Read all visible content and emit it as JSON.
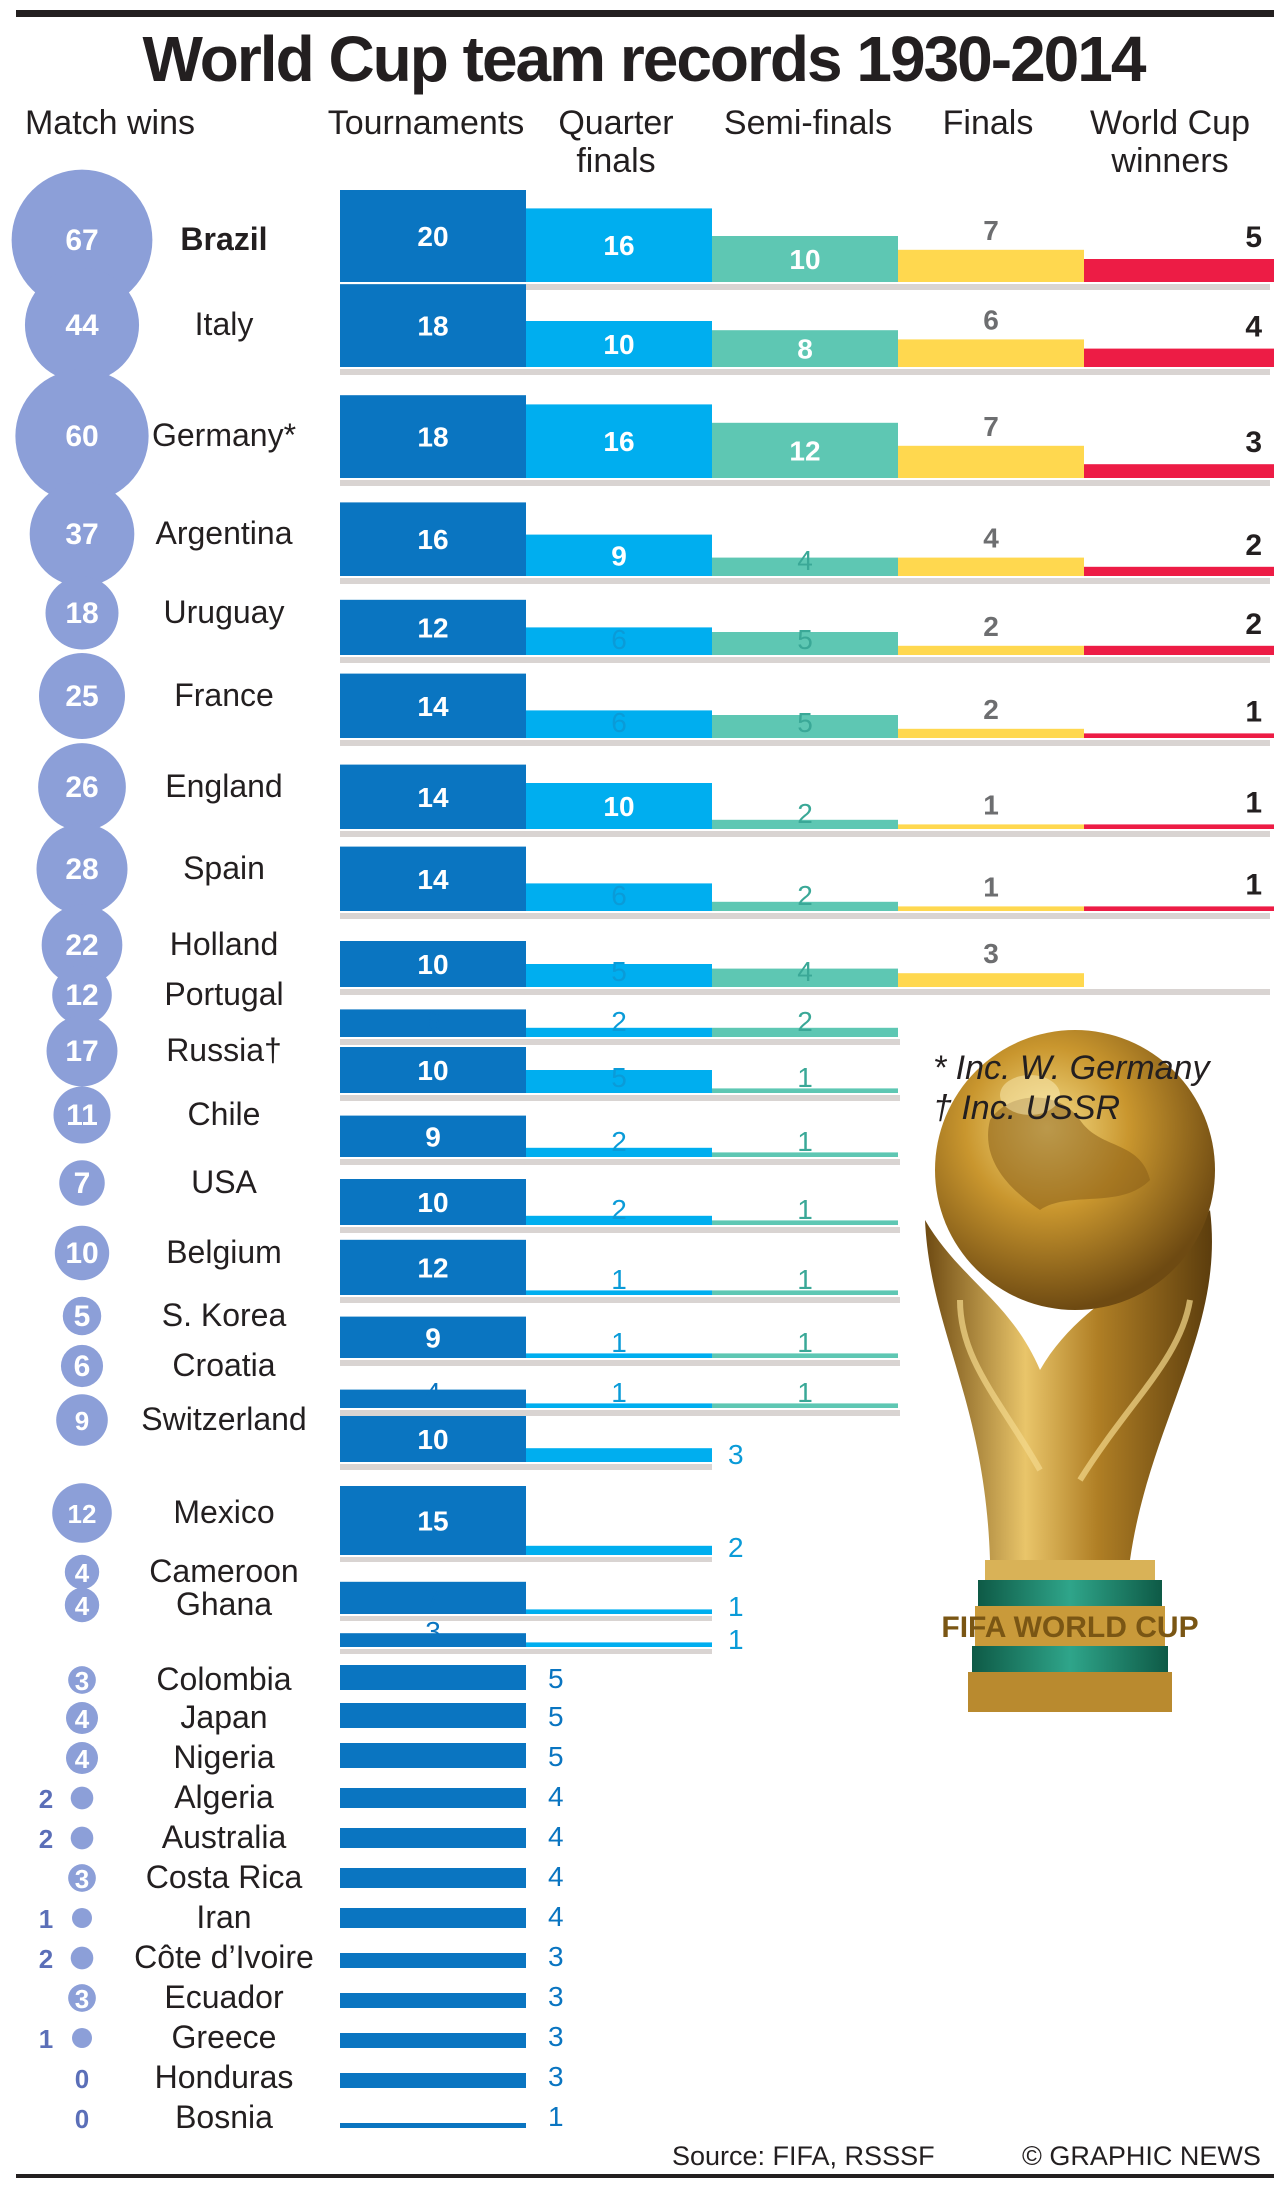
{
  "title": "World Cup team records 1930-2014",
  "headers": {
    "match_wins": "Match wins",
    "tournaments": "Tournaments",
    "quarter_finals": "Quarter finals",
    "semi_finals": "Semi-finals",
    "finals": "Finals",
    "winners": "World Cup winners"
  },
  "notes": {
    "germany": "* Inc. W. Germany",
    "russia": "† Inc. USSR"
  },
  "source": "Source: FIFA, RSSSF",
  "credit": "© GRAPHIC NEWS",
  "colors": {
    "tournaments": "#0a75c1",
    "quarter_finals": "#00aeef",
    "semi_finals": "#5ec7b3",
    "finals": "#ffd84f",
    "winners": "#ed1c45",
    "bubble": "#8c9fd8",
    "shadow": "#d9d4d2"
  },
  "chart_data": {
    "type": "bar",
    "title": "World Cup team records 1930-2014",
    "categories": [
      "Brazil",
      "Italy",
      "Germany*",
      "Argentina",
      "Uruguay",
      "France",
      "England",
      "Spain",
      "Holland",
      "Portugal",
      "Russia†",
      "Chile",
      "USA",
      "Belgium",
      "S. Korea",
      "Croatia",
      "Switzerland",
      "Mexico",
      "Cameroon",
      "Ghana",
      "Colombia",
      "Japan",
      "Nigeria",
      "Algeria",
      "Australia",
      "Costa Rica",
      "Iran",
      "Côte d’Ivoire",
      "Ecuador",
      "Greece",
      "Honduras",
      "Bosnia"
    ],
    "series": [
      {
        "name": "Match wins",
        "values": [
          67,
          44,
          60,
          37,
          18,
          25,
          26,
          28,
          22,
          12,
          17,
          11,
          7,
          10,
          5,
          6,
          9,
          12,
          4,
          4,
          3,
          4,
          4,
          2,
          2,
          3,
          1,
          2,
          3,
          1,
          0,
          0
        ]
      },
      {
        "name": "Tournaments",
        "values": [
          20,
          18,
          18,
          16,
          12,
          14,
          14,
          14,
          10,
          6,
          10,
          9,
          10,
          12,
          9,
          4,
          10,
          15,
          7,
          3,
          5,
          5,
          5,
          4,
          4,
          4,
          4,
          3,
          3,
          3,
          3,
          1
        ]
      },
      {
        "name": "Quarter finals",
        "values": [
          16,
          10,
          16,
          9,
          6,
          6,
          10,
          6,
          5,
          2,
          5,
          2,
          2,
          1,
          1,
          1,
          3,
          2,
          1,
          1,
          null,
          null,
          null,
          null,
          null,
          null,
          null,
          null,
          null,
          null,
          null,
          null
        ]
      },
      {
        "name": "Semi-finals",
        "values": [
          10,
          8,
          12,
          4,
          5,
          5,
          2,
          2,
          4,
          2,
          1,
          1,
          1,
          1,
          1,
          1,
          null,
          null,
          null,
          null,
          null,
          null,
          null,
          null,
          null,
          null,
          null,
          null,
          null,
          null,
          null,
          null
        ]
      },
      {
        "name": "Finals",
        "values": [
          7,
          6,
          7,
          4,
          2,
          2,
          1,
          1,
          3,
          null,
          null,
          null,
          null,
          null,
          null,
          null,
          null,
          null,
          null,
          null,
          null,
          null,
          null,
          null,
          null,
          null,
          null,
          null,
          null,
          null,
          null,
          null
        ]
      },
      {
        "name": "World Cup winners",
        "values": [
          5,
          4,
          3,
          2,
          2,
          1,
          1,
          1,
          null,
          null,
          null,
          null,
          null,
          null,
          null,
          null,
          null,
          null,
          null,
          null,
          null,
          null,
          null,
          null,
          null,
          null,
          null,
          null,
          null,
          null,
          null,
          null
        ]
      }
    ],
    "xlabel": "",
    "ylabel": ""
  }
}
